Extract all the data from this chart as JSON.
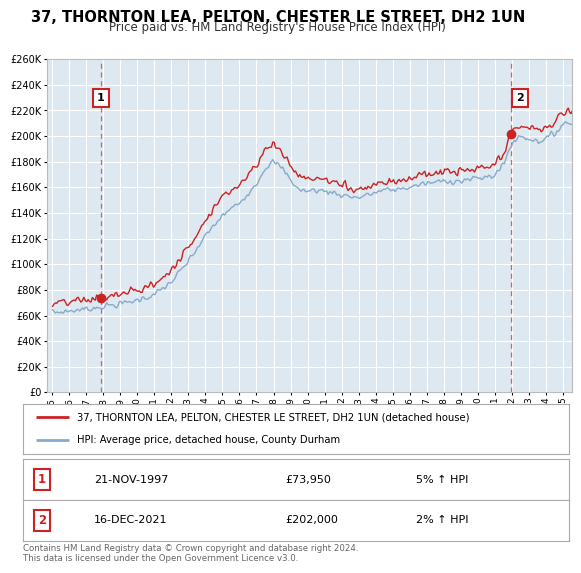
{
  "title": "37, THORNTON LEA, PELTON, CHESTER LE STREET, DH2 1UN",
  "subtitle": "Price paid vs. HM Land Registry's House Price Index (HPI)",
  "ylim": [
    0,
    260000
  ],
  "yticks": [
    0,
    20000,
    40000,
    60000,
    80000,
    100000,
    120000,
    140000,
    160000,
    180000,
    200000,
    220000,
    240000,
    260000
  ],
  "sale1_year": 1997.88,
  "sale1_price": 73950,
  "sale1_label": "1",
  "sale2_year": 2021.96,
  "sale2_price": 202000,
  "sale2_label": "2",
  "red_line_color": "#cc2222",
  "blue_line_color": "#88aacc",
  "bg_color": "#ffffff",
  "plot_bg": "#dde8f0",
  "grid_color": "#ffffff",
  "dashed_line_color": "#cc4444",
  "title_fontsize": 10.5,
  "subtitle_fontsize": 8.5,
  "legend_line1": "37, THORNTON LEA, PELTON, CHESTER LE STREET, DH2 1UN (detached house)",
  "legend_line2": "HPI: Average price, detached house, County Durham",
  "footnote": "Contains HM Land Registry data © Crown copyright and database right 2024.\nThis data is licensed under the Open Government Licence v3.0.",
  "table_row1": [
    "1",
    "21-NOV-1997",
    "£73,950",
    "5% ↑ HPI"
  ],
  "table_row2": [
    "2",
    "16-DEC-2021",
    "£202,000",
    "2% ↑ HPI"
  ]
}
